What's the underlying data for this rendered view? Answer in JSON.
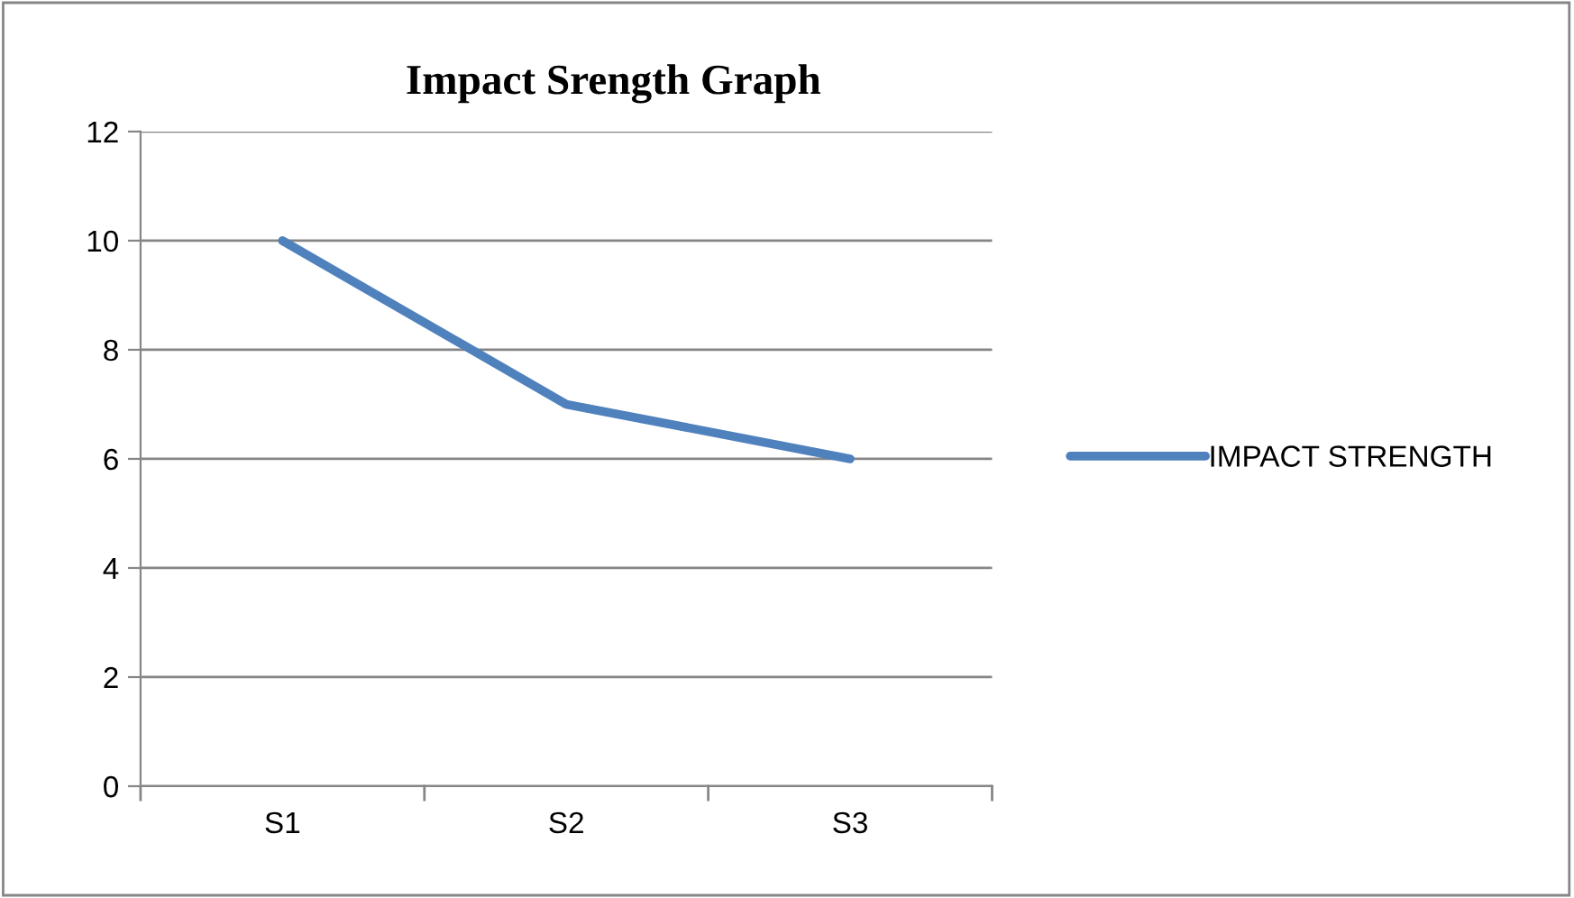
{
  "chart_data": {
    "type": "line",
    "title": "Impact Srength Graph",
    "categories": [
      "S1",
      "S2",
      "S3"
    ],
    "series": [
      {
        "name": "IMPACT STRENGTH",
        "color": "#4f81bd",
        "values": [
          10,
          7,
          6
        ]
      }
    ],
    "ylim": [
      0,
      12
    ],
    "yticks": [
      0,
      2,
      4,
      6,
      8,
      10,
      12
    ],
    "grid": "y",
    "legend": "right",
    "marker": "none",
    "line_style": "solid"
  }
}
